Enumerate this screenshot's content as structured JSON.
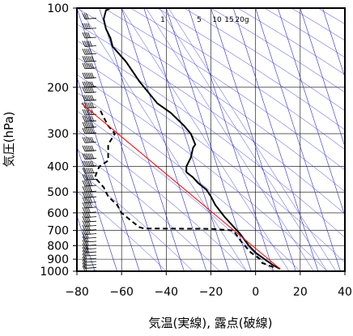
{
  "chart_data": {
    "type": "line",
    "title": "",
    "xlabel": "気温(実線), 露点(破線)",
    "ylabel": "気圧(hPa)",
    "xlim": [
      -80,
      40
    ],
    "ylim": [
      1000,
      100
    ],
    "y_scale": "log",
    "grid": true,
    "x_ticks": [
      -80,
      -60,
      -40,
      -20,
      0,
      20,
      40
    ],
    "y_ticks": [
      1000,
      900,
      800,
      700,
      600,
      500,
      400,
      300,
      200,
      100
    ],
    "mixing_ratio_labels": [
      "1",
      "5",
      "10",
      "15",
      "20g"
    ],
    "series": [
      {
        "name": "気温",
        "style": "solid",
        "color": "#000000",
        "points": [
          [
            11,
            980
          ],
          [
            8,
            950
          ],
          [
            4,
            900
          ],
          [
            0,
            850
          ],
          [
            -3,
            800
          ],
          [
            -7,
            720
          ],
          [
            -9,
            690
          ],
          [
            -14,
            620
          ],
          [
            -18,
            560
          ],
          [
            -20,
            520
          ],
          [
            -22,
            490
          ],
          [
            -26,
            460
          ],
          [
            -28,
            440
          ],
          [
            -31,
            420
          ],
          [
            -31,
            400
          ],
          [
            -29,
            370
          ],
          [
            -28,
            340
          ],
          [
            -27,
            330
          ],
          [
            -29,
            300
          ],
          [
            -32,
            280
          ],
          [
            -38,
            250
          ],
          [
            -44,
            230
          ],
          [
            -52,
            190
          ],
          [
            -58,
            160
          ],
          [
            -64,
            140
          ],
          [
            -65,
            130
          ],
          [
            -67,
            120
          ],
          [
            -68,
            110
          ],
          [
            -67,
            102
          ],
          [
            -65,
            100
          ]
        ]
      },
      {
        "name": "露点",
        "style": "dashed",
        "color": "#000000",
        "points": [
          [
            8,
            965
          ],
          [
            3,
            930
          ],
          [
            2,
            900
          ],
          [
            -2,
            850
          ],
          [
            -6,
            780
          ],
          [
            -10,
            700
          ],
          [
            -20,
            690
          ],
          [
            -50,
            688
          ],
          [
            -52,
            680
          ],
          [
            -56,
            640
          ],
          [
            -60,
            600
          ],
          [
            -62,
            560
          ],
          [
            -66,
            520
          ],
          [
            -68,
            480
          ],
          [
            -72,
            440
          ],
          [
            -70,
            400
          ],
          [
            -66,
            380
          ],
          [
            -66,
            330
          ],
          [
            -63,
            300
          ],
          [
            -66,
            280
          ],
          [
            -68,
            260
          ],
          [
            -70,
            240
          ]
        ]
      },
      {
        "name": "",
        "style": "thin",
        "color": "#ff0000",
        "points": [
          [
            11,
            980
          ],
          [
            -78,
            230
          ]
        ]
      }
    ],
    "wind_barbs": [
      {
        "p": 1000,
        "speed_kt": 15
      },
      {
        "p": 975,
        "speed_kt": 15
      },
      {
        "p": 950,
        "speed_kt": 20
      },
      {
        "p": 925,
        "speed_kt": 20
      },
      {
        "p": 900,
        "speed_kt": 20
      },
      {
        "p": 875,
        "speed_kt": 25
      },
      {
        "p": 850,
        "speed_kt": 25
      },
      {
        "p": 825,
        "speed_kt": 25
      },
      {
        "p": 800,
        "speed_kt": 30
      },
      {
        "p": 775,
        "speed_kt": 30
      },
      {
        "p": 750,
        "speed_kt": 30
      },
      {
        "p": 725,
        "speed_kt": 35
      },
      {
        "p": 700,
        "speed_kt": 35
      },
      {
        "p": 675,
        "speed_kt": 35
      },
      {
        "p": 650,
        "speed_kt": 40
      },
      {
        "p": 625,
        "speed_kt": 40
      },
      {
        "p": 600,
        "speed_kt": 40
      },
      {
        "p": 575,
        "speed_kt": 45
      },
      {
        "p": 550,
        "speed_kt": 45
      },
      {
        "p": 525,
        "speed_kt": 45
      },
      {
        "p": 500,
        "speed_kt": 50
      },
      {
        "p": 475,
        "speed_kt": 50
      },
      {
        "p": 450,
        "speed_kt": 55
      },
      {
        "p": 425,
        "speed_kt": 55
      },
      {
        "p": 400,
        "speed_kt": 60
      },
      {
        "p": 375,
        "speed_kt": 60
      },
      {
        "p": 350,
        "speed_kt": 65
      },
      {
        "p": 325,
        "speed_kt": 65
      },
      {
        "p": 300,
        "speed_kt": 70
      },
      {
        "p": 285,
        "speed_kt": 70
      },
      {
        "p": 270,
        "speed_kt": 75
      },
      {
        "p": 255,
        "speed_kt": 75
      },
      {
        "p": 240,
        "speed_kt": 70
      },
      {
        "p": 225,
        "speed_kt": 70
      },
      {
        "p": 210,
        "speed_kt": 65
      },
      {
        "p": 200,
        "speed_kt": 65
      },
      {
        "p": 185,
        "speed_kt": 60
      },
      {
        "p": 170,
        "speed_kt": 60
      },
      {
        "p": 160,
        "speed_kt": 55
      },
      {
        "p": 150,
        "speed_kt": 50
      },
      {
        "p": 140,
        "speed_kt": 45
      },
      {
        "p": 130,
        "speed_kt": 40
      },
      {
        "p": 120,
        "speed_kt": 35
      },
      {
        "p": 110,
        "speed_kt": 30
      },
      {
        "p": 100,
        "speed_kt": 25
      }
    ]
  }
}
